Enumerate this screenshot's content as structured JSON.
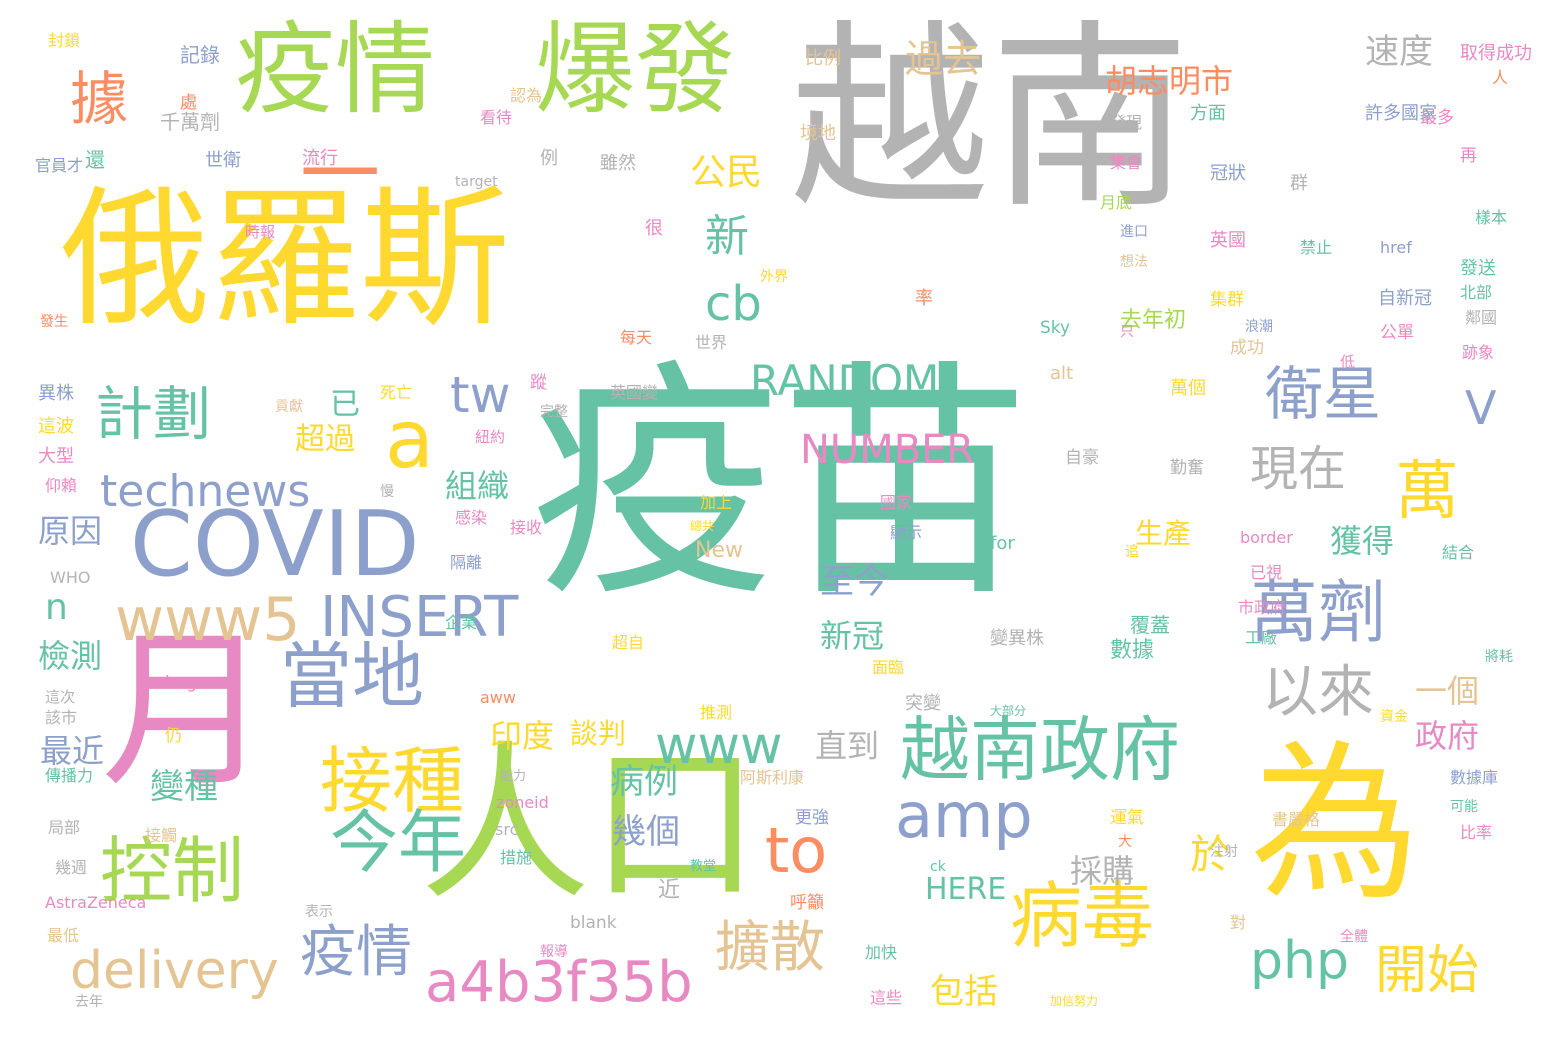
{
  "palette": {
    "teal": "#66c2a5",
    "orange": "#fc8d62",
    "blue": "#8da0cb",
    "pink": "#e78ac3",
    "green": "#a6d854",
    "yellow": "#ffd92f",
    "tan": "#e5c494",
    "gray": "#b3b3b3"
  },
  "words": [
    {
      "text": "疫苗",
      "color": "teal"
    },
    {
      "text": "越南",
      "color": "gray"
    },
    {
      "text": "俄羅斯",
      "color": "yellow"
    },
    {
      "text": "人口",
      "color": "green"
    },
    {
      "text": "為",
      "color": "yellow"
    },
    {
      "text": "疫情",
      "color": "green"
    },
    {
      "text": "爆發",
      "color": "green"
    },
    {
      "text": "月",
      "color": "pink"
    },
    {
      "text": "COVID",
      "color": "blue"
    },
    {
      "text": "越南政府",
      "color": "teal"
    },
    {
      "text": "病毒",
      "color": "yellow"
    },
    {
      "text": "控制",
      "color": "green"
    },
    {
      "text": "接種",
      "color": "yellow"
    },
    {
      "text": "當地",
      "color": "blue"
    },
    {
      "text": "今年",
      "color": "teal"
    },
    {
      "text": "萬劑",
      "color": "blue"
    },
    {
      "text": "衛星",
      "color": "blue"
    },
    {
      "text": "計劃",
      "color": "teal"
    },
    {
      "text": "一",
      "color": "orange"
    },
    {
      "text": "據",
      "color": "orange"
    },
    {
      "text": "a",
      "color": "yellow"
    },
    {
      "text": "amp",
      "color": "blue"
    },
    {
      "text": "to",
      "color": "orange"
    },
    {
      "text": "www5",
      "color": "tan"
    },
    {
      "text": "INSERT",
      "color": "blue"
    },
    {
      "text": "technews",
      "color": "blue"
    },
    {
      "text": "a4b3f35b",
      "color": "pink"
    },
    {
      "text": "delivery",
      "color": "tan"
    },
    {
      "text": "疫情",
      "color": "blue"
    },
    {
      "text": "擴散",
      "color": "tan"
    },
    {
      "text": "開始",
      "color": "yellow"
    },
    {
      "text": "php",
      "color": "teal"
    },
    {
      "text": "www",
      "color": "teal"
    },
    {
      "text": "RANDOM",
      "color": "teal"
    },
    {
      "text": "NUMBER",
      "color": "pink"
    },
    {
      "text": "萬",
      "color": "yellow"
    },
    {
      "text": "現在",
      "color": "gray"
    },
    {
      "text": "以來",
      "color": "gray"
    },
    {
      "text": "V",
      "color": "blue"
    },
    {
      "text": "tw",
      "color": "blue"
    },
    {
      "text": "cb",
      "color": "teal"
    },
    {
      "text": "新",
      "color": "teal"
    },
    {
      "text": "n",
      "color": "teal"
    },
    {
      "text": "胡志明市",
      "color": "orange"
    },
    {
      "text": "過去",
      "color": "tan"
    },
    {
      "text": "速度",
      "color": "gray"
    },
    {
      "text": "公民",
      "color": "yellow"
    },
    {
      "text": "組織",
      "color": "teal"
    },
    {
      "text": "超過",
      "color": "yellow"
    },
    {
      "text": "已",
      "color": "teal"
    },
    {
      "text": "原因",
      "color": "blue"
    },
    {
      "text": "檢測",
      "color": "teal"
    },
    {
      "text": "最近",
      "color": "blue"
    },
    {
      "text": "變種",
      "color": "teal"
    },
    {
      "text": "至今",
      "color": "blue"
    },
    {
      "text": "新冠",
      "color": "teal"
    },
    {
      "text": "印度",
      "color": "yellow"
    },
    {
      "text": "談判",
      "color": "yellow"
    },
    {
      "text": "病例",
      "color": "teal"
    },
    {
      "text": "幾個",
      "color": "blue"
    },
    {
      "text": "直到",
      "color": "gray"
    },
    {
      "text": "獲得",
      "color": "teal"
    },
    {
      "text": "生產",
      "color": "yellow"
    },
    {
      "text": "一個",
      "color": "tan"
    },
    {
      "text": "政府",
      "color": "pink"
    },
    {
      "text": "於",
      "color": "yellow"
    },
    {
      "text": "採購",
      "color": "gray"
    },
    {
      "text": "HERE",
      "color": "teal"
    },
    {
      "text": "包括",
      "color": "yellow"
    },
    {
      "text": "近",
      "color": "gray"
    },
    {
      "text": "數據",
      "color": "teal"
    },
    {
      "text": "覆蓋",
      "color": "teal"
    },
    {
      "text": "New",
      "color": "tan"
    },
    {
      "text": "for",
      "color": "teal"
    },
    {
      "text": "變異株",
      "color": "gray"
    },
    {
      "text": "去年初",
      "color": "green"
    },
    {
      "text": "還",
      "color": "teal"
    },
    {
      "text": "千萬劑",
      "color": "gray"
    },
    {
      "text": "世衛",
      "color": "blue"
    },
    {
      "text": "流行",
      "color": "pink"
    },
    {
      "text": "例",
      "color": "gray"
    },
    {
      "text": "雖然",
      "color": "gray"
    },
    {
      "text": "看待",
      "color": "pink"
    },
    {
      "text": "認為",
      "color": "tan"
    },
    {
      "text": "處",
      "color": "orange"
    },
    {
      "text": "記錄",
      "color": "blue"
    },
    {
      "text": "封鎖",
      "color": "yellow"
    },
    {
      "text": "官員才",
      "color": "blue"
    },
    {
      "text": "比例",
      "color": "tan"
    },
    {
      "text": "境地",
      "color": "tan"
    },
    {
      "text": "發現",
      "color": "gray"
    },
    {
      "text": "方面",
      "color": "teal"
    },
    {
      "text": "許多國家",
      "color": "blue"
    },
    {
      "text": "最多",
      "color": "pink"
    },
    {
      "text": "取得成功",
      "color": "pink"
    },
    {
      "text": "人",
      "color": "orange"
    },
    {
      "text": "再",
      "color": "pink"
    },
    {
      "text": "集會",
      "color": "pink"
    },
    {
      "text": "月底",
      "color": "green"
    },
    {
      "text": "冠狀",
      "color": "blue"
    },
    {
      "text": "群",
      "color": "gray"
    },
    {
      "text": "樣本",
      "color": "teal"
    },
    {
      "text": "英國",
      "color": "pink"
    },
    {
      "text": "禁止",
      "color": "teal"
    },
    {
      "text": "href",
      "color": "blue"
    },
    {
      "text": "發送",
      "color": "teal"
    },
    {
      "text": "北部",
      "color": "teal"
    },
    {
      "text": "鄰國",
      "color": "gray"
    },
    {
      "text": "跡象",
      "color": "pink"
    },
    {
      "text": "集群",
      "color": "yellow"
    },
    {
      "text": "自新冠",
      "color": "blue"
    },
    {
      "text": "浪潮",
      "color": "blue"
    },
    {
      "text": "公單",
      "color": "pink"
    },
    {
      "text": "低",
      "color": "pink"
    },
    {
      "text": "只",
      "color": "pink"
    },
    {
      "text": "Sky",
      "color": "teal"
    },
    {
      "text": "率",
      "color": "orange"
    },
    {
      "text": "外界",
      "color": "yellow"
    },
    {
      "text": "進口",
      "color": "blue"
    },
    {
      "text": "想法",
      "color": "tan"
    },
    {
      "text": "世界",
      "color": "gray"
    },
    {
      "text": "target",
      "color": "gray"
    },
    {
      "text": "時報",
      "color": "pink"
    },
    {
      "text": "很",
      "color": "pink"
    },
    {
      "text": "每天",
      "color": "orange"
    },
    {
      "text": "蹤",
      "color": "pink"
    },
    {
      "text": "死亡",
      "color": "yellow"
    },
    {
      "text": "英國變",
      "color": "gray"
    },
    {
      "text": "完整",
      "color": "gray"
    },
    {
      "text": "貢獻",
      "color": "tan"
    },
    {
      "text": "紐約",
      "color": "pink"
    },
    {
      "text": "異株",
      "color": "blue"
    },
    {
      "text": "這波",
      "color": "yellow"
    },
    {
      "text": "大型",
      "color": "pink"
    },
    {
      "text": "仰賴",
      "color": "pink"
    },
    {
      "text": "發生",
      "color": "orange"
    },
    {
      "text": "慢",
      "color": "gray"
    },
    {
      "text": "WHO",
      "color": "gray"
    },
    {
      "text": "隔離",
      "color": "blue"
    },
    {
      "text": "感染",
      "color": "pink"
    },
    {
      "text": "接收",
      "color": "pink"
    },
    {
      "text": "加上",
      "color": "yellow"
    },
    {
      "text": "總共",
      "color": "yellow"
    },
    {
      "text": "國家",
      "color": "pink"
    },
    {
      "text": "顯示",
      "color": "blue"
    },
    {
      "text": "自豪",
      "color": "gray"
    },
    {
      "text": "勤奮",
      "color": "gray"
    },
    {
      "text": "border",
      "color": "pink"
    },
    {
      "text": "已視",
      "color": "pink"
    },
    {
      "text": "結合",
      "color": "teal"
    },
    {
      "text": "市政府",
      "color": "pink"
    },
    {
      "text": "工廠",
      "color": "teal"
    },
    {
      "text": "將耗",
      "color": "teal"
    },
    {
      "text": "alt",
      "color": "tan"
    },
    {
      "text": "萬個",
      "color": "yellow"
    },
    {
      "text": "成功",
      "color": "tan"
    },
    {
      "text": "追",
      "color": "yellow"
    },
    {
      "text": "超自",
      "color": "yellow"
    },
    {
      "text": "面臨",
      "color": "yellow"
    },
    {
      "text": "企業",
      "color": "teal"
    },
    {
      "text": "突變",
      "color": "gray"
    },
    {
      "text": "推測",
      "color": "yellow"
    },
    {
      "text": "大部分",
      "color": "teal"
    },
    {
      "text": "資金",
      "color": "yellow"
    },
    {
      "text": "數據庫",
      "color": "blue"
    },
    {
      "text": "可能",
      "color": "teal"
    },
    {
      "text": "比率",
      "color": "pink"
    },
    {
      "text": "img",
      "color": "pink"
    },
    {
      "text": "該市",
      "color": "gray"
    },
    {
      "text": "這次",
      "color": "gray"
    },
    {
      "text": "aww",
      "color": "orange"
    },
    {
      "text": "仍",
      "color": "yellow"
    },
    {
      "text": "傳播力",
      "color": "teal"
    },
    {
      "text": "能力",
      "color": "gray"
    },
    {
      "text": "阿斯利康",
      "color": "tan"
    },
    {
      "text": "zoneid",
      "color": "pink"
    },
    {
      "text": "接觸",
      "color": "tan"
    },
    {
      "text": "局部",
      "color": "gray"
    },
    {
      "text": "src",
      "color": "gray"
    },
    {
      "text": "措施",
      "color": "teal"
    },
    {
      "text": "更強",
      "color": "blue"
    },
    {
      "text": "運氣",
      "color": "yellow"
    },
    {
      "text": "書嚴格",
      "color": "tan"
    },
    {
      "text": "大",
      "color": "orange"
    },
    {
      "text": "注射",
      "color": "gray"
    },
    {
      "text": "幾週",
      "color": "gray"
    },
    {
      "text": "教堂",
      "color": "teal"
    },
    {
      "text": "ck",
      "color": "teal"
    },
    {
      "text": "AstraZeneca",
      "color": "pink"
    },
    {
      "text": "表示",
      "color": "gray"
    },
    {
      "text": "呼籲",
      "color": "orange"
    },
    {
      "text": "blank",
      "color": "gray"
    },
    {
      "text": "對",
      "color": "tan"
    },
    {
      "text": "全體",
      "color": "pink"
    },
    {
      "text": "最低",
      "color": "tan"
    },
    {
      "text": "報導",
      "color": "pink"
    },
    {
      "text": "加快",
      "color": "teal"
    },
    {
      "text": "這些",
      "color": "pink"
    },
    {
      "text": "去年",
      "color": "gray"
    },
    {
      "text": "加信努力",
      "color": "yellow"
    },
    {
      "text": "約",
      "color": "pink"
    }
  ]
}
